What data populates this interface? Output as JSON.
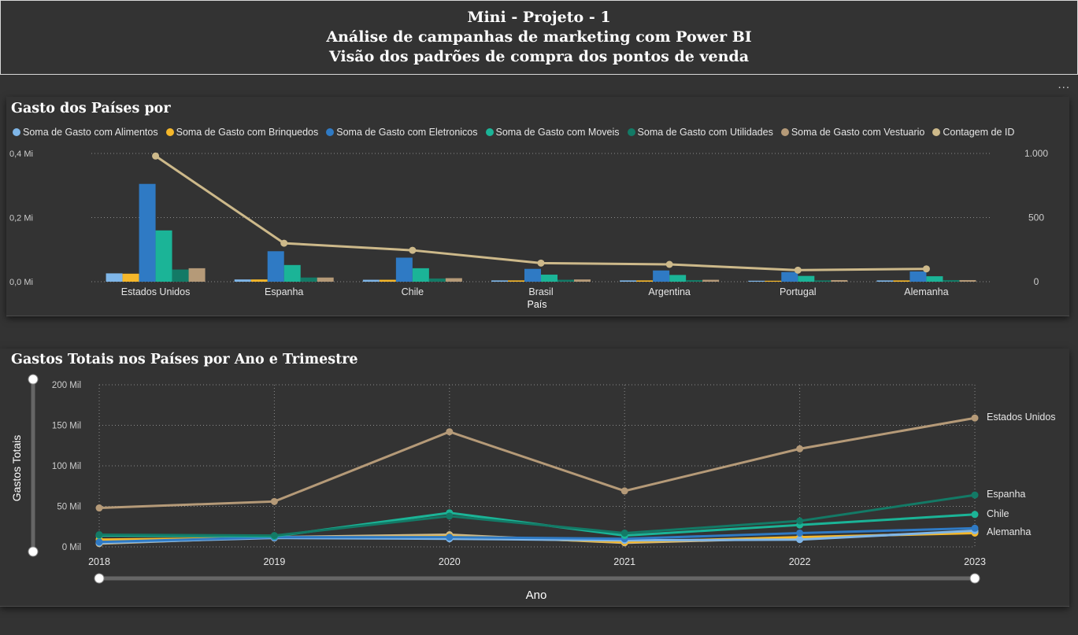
{
  "header": {
    "line1": "Mini - Projeto - 1",
    "line2": "Análise de campanhas de marketing com Power BI",
    "line3": "Visão  dos padrões de compra dos pontos de venda"
  },
  "more_label": "...",
  "colors": {
    "alimentos": "#7fb6e8",
    "brinquedos": "#f5b72a",
    "eletronicos": "#2f7ac4",
    "moveis": "#1bb497",
    "utilidades": "#137a66",
    "vestuario": "#b59a78",
    "contagem": "#cdb98a"
  },
  "chart_data": [
    {
      "type": "bar",
      "title": "Gasto dos Países por",
      "xlabel": "País",
      "categories": [
        "Estados Unidos",
        "Espanha",
        "Chile",
        "Brasil",
        "Argentina",
        "Portugal",
        "Alemanha"
      ],
      "y_ticks": [
        "0,4 Mi",
        "0,2 Mi",
        "0,0 Mi"
      ],
      "y2_ticks": [
        "1.000",
        "500",
        "0"
      ],
      "ylim": [
        0,
        0.4
      ],
      "y2lim": [
        0,
        1000
      ],
      "series": [
        {
          "name": "Soma de Gasto com Alimentos",
          "color_key": "alimentos",
          "values": [
            0.026,
            0.007,
            0.006,
            0.004,
            0.004,
            0.003,
            0.004
          ]
        },
        {
          "name": "Soma de Gasto com Brinquedos",
          "color_key": "brinquedos",
          "values": [
            0.025,
            0.007,
            0.006,
            0.004,
            0.004,
            0.003,
            0.004
          ]
        },
        {
          "name": "Soma de Gasto com Eletronicos",
          "color_key": "eletronicos",
          "values": [
            0.305,
            0.095,
            0.075,
            0.04,
            0.035,
            0.03,
            0.032
          ]
        },
        {
          "name": "Soma de Gasto com Moveis",
          "color_key": "moveis",
          "values": [
            0.16,
            0.052,
            0.042,
            0.022,
            0.021,
            0.018,
            0.017
          ]
        },
        {
          "name": "Soma de Gasto com Utilidades",
          "color_key": "utilidades",
          "values": [
            0.038,
            0.013,
            0.01,
            0.006,
            0.005,
            0.004,
            0.005
          ]
        },
        {
          "name": "Soma de Gasto com Vestuario",
          "color_key": "vestuario",
          "values": [
            0.042,
            0.013,
            0.011,
            0.007,
            0.006,
            0.005,
            0.005
          ]
        }
      ],
      "line_series": {
        "name": "Contagem de ID",
        "color_key": "contagem",
        "axis": "secondary",
        "values": [
          980,
          300,
          245,
          145,
          135,
          90,
          100
        ]
      }
    },
    {
      "type": "line",
      "title": "Gastos Totais nos Países por Ano e Trimestre",
      "xlabel": "Ano",
      "ylabel": "Gastos Totais",
      "x": [
        "2018",
        "2019",
        "2020",
        "2021",
        "2022",
        "2023"
      ],
      "y_ticks": [
        "200 Mil",
        "150 Mil",
        "100 Mil",
        "50 Mil",
        "0 Mil"
      ],
      "ylim": [
        0,
        200
      ],
      "series": [
        {
          "name": "Estados Unidos",
          "color_key": "vestuario",
          "values": [
            48,
            56,
            142,
            69,
            121,
            159
          ]
        },
        {
          "name": "Espanha",
          "color_key": "utilidades",
          "values": [
            15,
            14,
            38,
            17,
            32,
            64
          ]
        },
        {
          "name": "Chile",
          "color_key": "moveis",
          "values": [
            14,
            13,
            42,
            14,
            27,
            40
          ]
        },
        {
          "name": "Alemanha",
          "color_key": "eletronicos",
          "values": [
            6,
            12,
            12,
            10,
            17,
            23
          ]
        },
        {
          "name": "",
          "color_key": "alimentos",
          "values": [
            5,
            11,
            10,
            8,
            9,
            20
          ]
        },
        {
          "name": "",
          "color_key": "brinquedos",
          "values": [
            9,
            11,
            13,
            6,
            12,
            17
          ]
        },
        {
          "name": "",
          "color_key": "contagem",
          "values": [
            4,
            12,
            15,
            5,
            11,
            18
          ]
        }
      ],
      "end_labels": [
        "Estados Unidos",
        "Espanha",
        "Chile",
        "Alemanha"
      ]
    }
  ]
}
